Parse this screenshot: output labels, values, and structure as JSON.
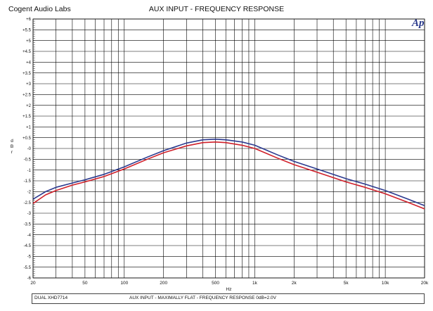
{
  "header": {
    "left": "Cogent Audio Labs",
    "title": "AUX INPUT  -  FREQUENCY RESPONSE",
    "logo": "Ap"
  },
  "footer": {
    "left": "DUAL XHD7714",
    "right": "AUX INPUT  - MAXIMALLY FLAT  - FREQUENCY RESPONSE  0dB=2.0V"
  },
  "chart_data": {
    "type": "line",
    "title": "AUX INPUT  -  FREQUENCY RESPONSE",
    "xlabel": "Hz",
    "ylabel": "dBr",
    "xscale": "log",
    "xlim": [
      20,
      20000
    ],
    "ylim": [
      -6,
      6
    ],
    "grid": true,
    "xticks": [
      {
        "v": 20,
        "label": "20"
      },
      {
        "v": 50,
        "label": "50"
      },
      {
        "v": 100,
        "label": "100"
      },
      {
        "v": 200,
        "label": "200"
      },
      {
        "v": 500,
        "label": "500"
      },
      {
        "v": 1000,
        "label": "1k"
      },
      {
        "v": 2000,
        "label": "2k"
      },
      {
        "v": 5000,
        "label": "5k"
      },
      {
        "v": 10000,
        "label": "10k"
      },
      {
        "v": 20000,
        "label": "20k"
      }
    ],
    "yticks": [
      {
        "v": 6,
        "label": "+6"
      },
      {
        "v": 5.5,
        "label": "+5.5"
      },
      {
        "v": 5,
        "label": "+5"
      },
      {
        "v": 4.5,
        "label": "+4.5"
      },
      {
        "v": 4,
        "label": "+4"
      },
      {
        "v": 3.5,
        "label": "+3.5"
      },
      {
        "v": 3,
        "label": "+3"
      },
      {
        "v": 2.5,
        "label": "+2.5"
      },
      {
        "v": 2,
        "label": "+2"
      },
      {
        "v": 1.5,
        "label": "+1.5"
      },
      {
        "v": 1,
        "label": "+1"
      },
      {
        "v": 0.5,
        "label": "+0.5"
      },
      {
        "v": 0,
        "label": "-0"
      },
      {
        "v": -0.5,
        "label": "-0.5"
      },
      {
        "v": -1,
        "label": "-1"
      },
      {
        "v": -1.5,
        "label": "-1.5"
      },
      {
        "v": -2,
        "label": "-2"
      },
      {
        "v": -2.5,
        "label": "-2.5"
      },
      {
        "v": -3,
        "label": "-3"
      },
      {
        "v": -3.5,
        "label": "-3.5"
      },
      {
        "v": -4,
        "label": "-4"
      },
      {
        "v": -4.5,
        "label": "-4.5"
      },
      {
        "v": -5,
        "label": "-5"
      },
      {
        "v": -5.5,
        "label": "-5.5"
      },
      {
        "v": -6,
        "label": "-6"
      }
    ],
    "series": [
      {
        "color": "#2b3a8f",
        "x": [
          20,
          25,
          30,
          40,
          50,
          70,
          100,
          150,
          200,
          300,
          400,
          500,
          600,
          800,
          1000,
          1500,
          2000,
          3000,
          5000,
          7000,
          10000,
          15000,
          20000
        ],
        "y": [
          -2.35,
          -2.0,
          -1.8,
          -1.6,
          -1.45,
          -1.2,
          -0.85,
          -0.4,
          -0.1,
          0.25,
          0.4,
          0.43,
          0.4,
          0.3,
          0.15,
          -0.3,
          -0.6,
          -0.95,
          -1.4,
          -1.65,
          -1.95,
          -2.35,
          -2.65
        ]
      },
      {
        "color": "#d0202a",
        "x": [
          20,
          25,
          30,
          40,
          50,
          70,
          100,
          150,
          200,
          300,
          400,
          500,
          600,
          800,
          1000,
          1500,
          2000,
          3000,
          5000,
          7000,
          10000,
          15000,
          20000
        ],
        "y": [
          -2.55,
          -2.15,
          -1.95,
          -1.7,
          -1.55,
          -1.3,
          -0.95,
          -0.5,
          -0.2,
          0.12,
          0.27,
          0.3,
          0.27,
          0.15,
          0.0,
          -0.45,
          -0.75,
          -1.1,
          -1.55,
          -1.8,
          -2.1,
          -2.5,
          -2.8
        ]
      }
    ]
  }
}
